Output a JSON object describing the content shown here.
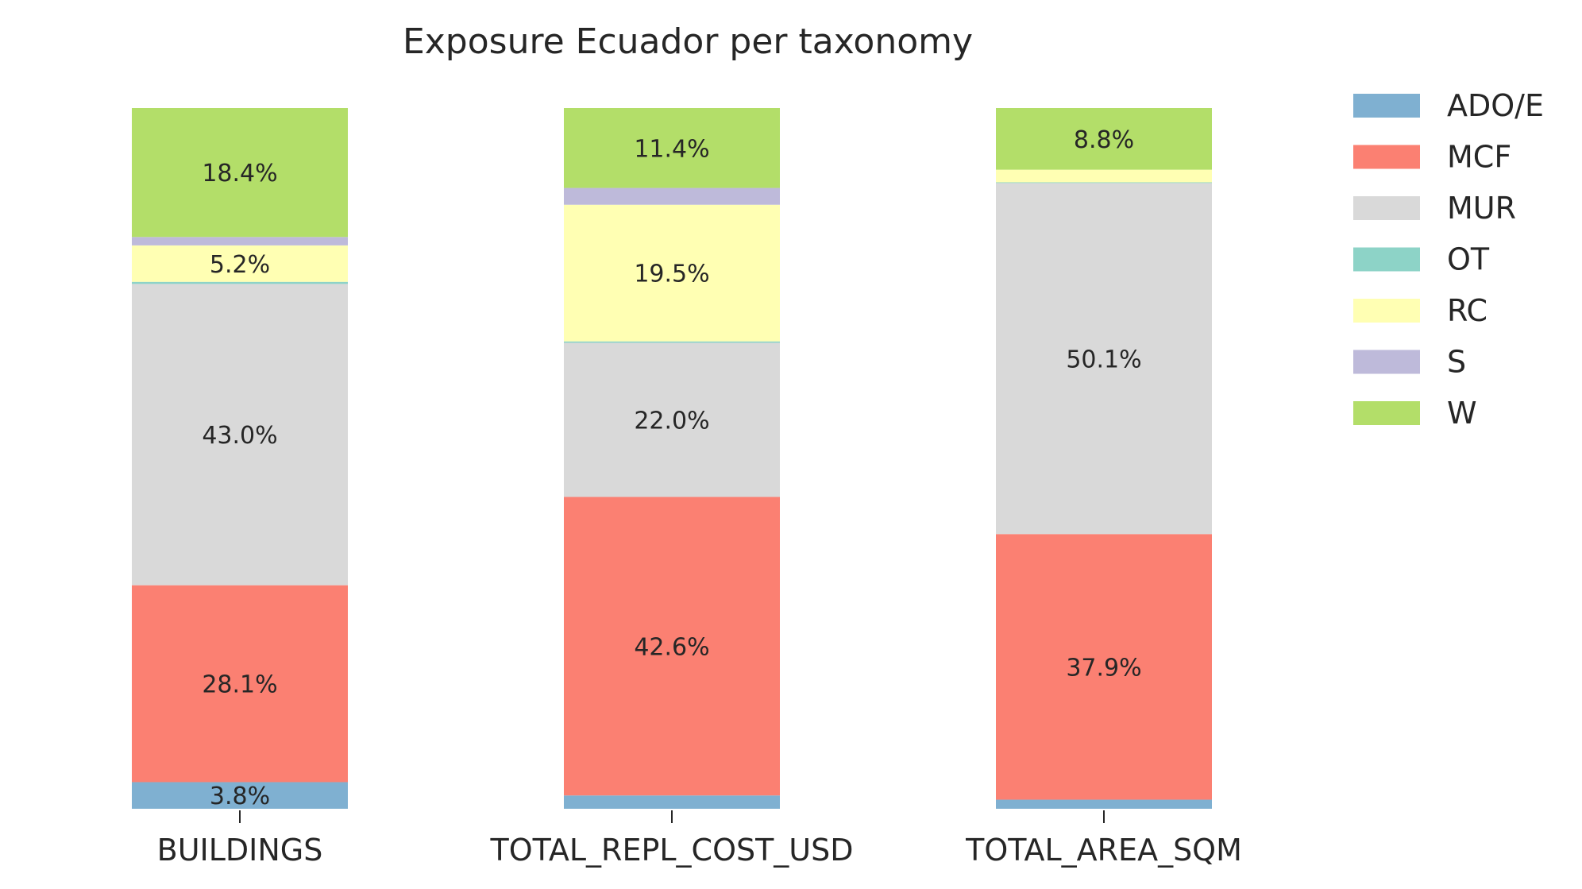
{
  "chart_data": {
    "type": "bar",
    "stacked": true,
    "title": "Exposure Ecuador per taxonomy",
    "xlabel": "",
    "ylabel": "",
    "ylim": [
      0,
      100
    ],
    "grid": false,
    "legend_position": "right",
    "categories": [
      "BUILDINGS",
      "TOTAL_REPL_COST_USD",
      "TOTAL_AREA_SQM"
    ],
    "series": [
      {
        "name": "ADO/E",
        "color": "#7fb0d1",
        "values": [
          3.8,
          1.9,
          1.3
        ],
        "labels": [
          "3.8%",
          "",
          ""
        ]
      },
      {
        "name": "MCF",
        "color": "#fb8072",
        "values": [
          28.1,
          42.6,
          37.9
        ],
        "labels": [
          "28.1%",
          "42.6%",
          "37.9%"
        ]
      },
      {
        "name": "MUR",
        "color": "#d9d9d9",
        "values": [
          43.0,
          22.0,
          50.1
        ],
        "labels": [
          "43.0%",
          "22.0%",
          "50.1%"
        ]
      },
      {
        "name": "OT",
        "color": "#8dd3c7",
        "values": [
          0.3,
          0.2,
          0.1
        ],
        "labels": [
          "",
          "",
          ""
        ]
      },
      {
        "name": "RC",
        "color": "#ffffb3",
        "values": [
          5.2,
          19.5,
          1.8
        ],
        "labels": [
          "5.2%",
          "19.5%",
          ""
        ]
      },
      {
        "name": "S",
        "color": "#bebada",
        "values": [
          1.2,
          2.4,
          0.0
        ],
        "labels": [
          "",
          "",
          ""
        ]
      },
      {
        "name": "W",
        "color": "#b3de69",
        "values": [
          18.4,
          11.4,
          8.8
        ],
        "labels": [
          "18.4%",
          "11.4%",
          "8.8%"
        ]
      }
    ]
  }
}
